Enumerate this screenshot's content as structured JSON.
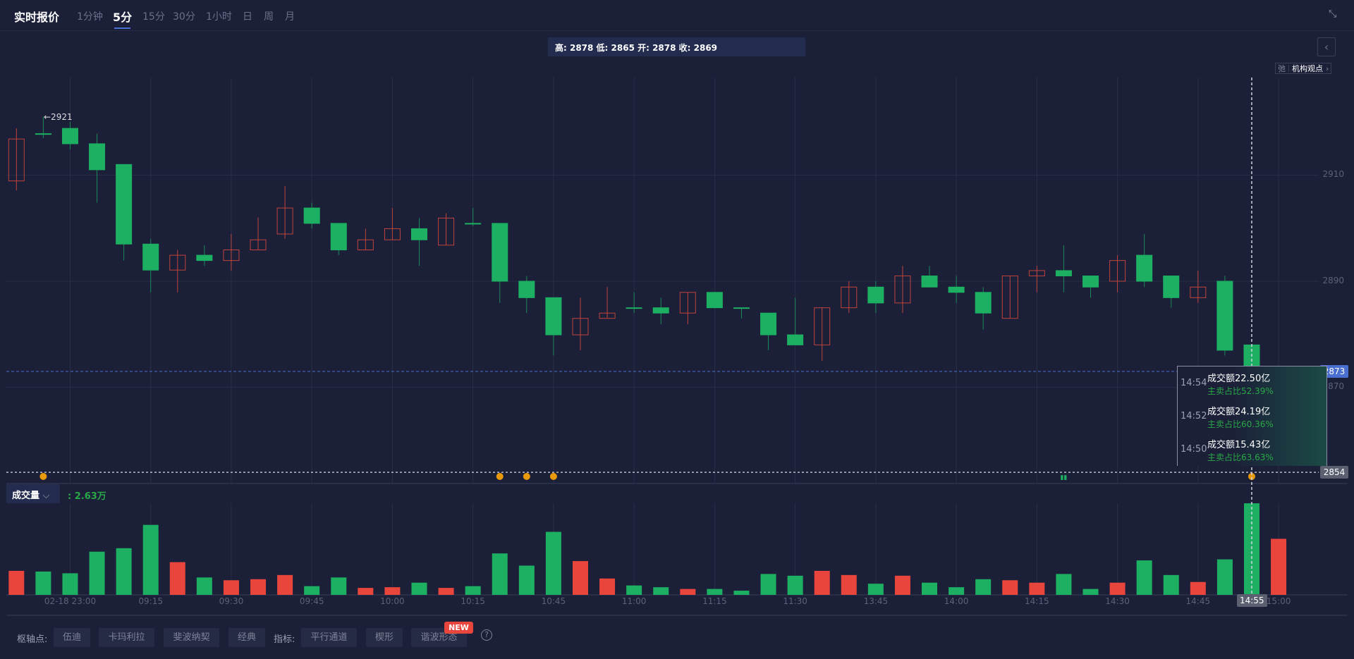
{
  "header": {
    "title": "实时报价",
    "tabs": [
      "1分钟",
      "5分",
      "15分",
      "30分",
      "1小时",
      "日",
      "周",
      "月"
    ],
    "active_tab": "5分"
  },
  "ohlc_text": "高: 2878 低: 2865 开: 2878 收: 2869",
  "opinion": {
    "icon": "弛",
    "label": "机构观点"
  },
  "colors": {
    "up": "#e8453c",
    "down": "#1db062",
    "background": "#1b1f38",
    "grid": "#2a2f48",
    "accent": "#4a6fd1"
  },
  "price_axis": {
    "ticks": [
      "2910",
      "2890",
      "2870"
    ],
    "current_price": "2873",
    "crosshair_price": "2854"
  },
  "tooltip": [
    {
      "time": "14:54",
      "amount": "成交额22.50亿",
      "ratio": "主卖占比52.39%"
    },
    {
      "time": "14:52",
      "amount": "成交额24.19亿",
      "ratio": "主卖占比60.36%"
    },
    {
      "time": "14:50",
      "amount": "成交额15.43亿",
      "ratio": "主卖占比63.63%"
    }
  ],
  "volume": {
    "selector": "成交量",
    "value": ": 2.63万"
  },
  "time_axis": {
    "labels": [
      {
        "i": 2,
        "t": "02-18 23:00"
      },
      {
        "i": 5,
        "t": "09:15"
      },
      {
        "i": 8,
        "t": "09:30"
      },
      {
        "i": 11,
        "t": "09:45"
      },
      {
        "i": 14,
        "t": "10:00"
      },
      {
        "i": 17,
        "t": "10:15"
      },
      {
        "i": 20,
        "t": "10:45"
      },
      {
        "i": 23,
        "t": "11:00"
      },
      {
        "i": 26,
        "t": "11:15"
      },
      {
        "i": 29,
        "t": "11:30"
      },
      {
        "i": 32,
        "t": "13:45"
      },
      {
        "i": 35,
        "t": "14:00"
      },
      {
        "i": 38,
        "t": "14:15"
      },
      {
        "i": 41,
        "t": "14:30"
      },
      {
        "i": 44,
        "t": "14:45"
      },
      {
        "i": 47,
        "t": "15:00"
      }
    ],
    "current": "14:55"
  },
  "max_label": "←2921",
  "bottom": {
    "pivot_label": "枢轴点:",
    "pivots": [
      "伍迪",
      "卡玛利拉",
      "斐波纳契",
      "经典"
    ],
    "indicator_label": "指标:",
    "indicators": [
      "平行通道",
      "楔形",
      "谐波形态"
    ],
    "new_badge": "NEW",
    "help": "?"
  },
  "chart_data": {
    "type": "candlestick",
    "unit_volume": "万",
    "y_ticks": [
      2910,
      2890,
      2870
    ],
    "candles": [
      [
        2908.9,
        2918.8,
        2907.1,
        2916.8
      ],
      [
        2917.8,
        2921,
        2917,
        2917.8
      ],
      [
        2918.8,
        2920,
        2914.9,
        2915.9
      ],
      [
        2915.9,
        2917.8,
        2904.8,
        2911
      ],
      [
        2912,
        2912,
        2893.9,
        2897
      ],
      [
        2897,
        2898,
        2887.9,
        2892.1
      ],
      [
        2892.1,
        2895.9,
        2887.9,
        2894.9
      ],
      [
        2894.9,
        2896.8,
        2892.9,
        2893.9
      ],
      [
        2893.9,
        2898.9,
        2892,
        2895.9
      ],
      [
        2895.9,
        2902,
        2895.9,
        2897.8
      ],
      [
        2898.9,
        2907.9,
        2898,
        2903.8
      ],
      [
        2903.8,
        2904.8,
        2899.9,
        2900.9
      ],
      [
        2900.9,
        2900.9,
        2894.9,
        2895.9
      ],
      [
        2895.9,
        2899.9,
        2895.9,
        2897.8
      ],
      [
        2897.8,
        2903.8,
        2897.8,
        2899.9
      ],
      [
        2899.9,
        2901.9,
        2892.9,
        2897.8
      ],
      [
        2896.8,
        2902.8,
        2896.8,
        2901.9
      ],
      [
        2900.9,
        2903.8,
        2900.4,
        2900.9
      ],
      [
        2900.9,
        2900.9,
        2885.9,
        2890
      ],
      [
        2890,
        2891,
        2884,
        2886.9
      ],
      [
        2886.9,
        2886.9,
        2876,
        2879.9
      ],
      [
        2879.9,
        2886.9,
        2877,
        2883
      ],
      [
        2883,
        2888.9,
        2883,
        2884
      ],
      [
        2885,
        2887.9,
        2884,
        2885
      ],
      [
        2885,
        2886.9,
        2881.9,
        2884
      ],
      [
        2884,
        2887.9,
        2881.9,
        2887.9
      ],
      [
        2887.9,
        2887.9,
        2885,
        2885
      ],
      [
        2885,
        2885,
        2883,
        2885
      ],
      [
        2884,
        2884,
        2877,
        2879.9
      ],
      [
        2879.9,
        2886.9,
        2878,
        2878
      ],
      [
        2878,
        2885,
        2875,
        2885
      ],
      [
        2885,
        2890,
        2884,
        2888.9
      ],
      [
        2888.9,
        2890,
        2884,
        2885.9
      ],
      [
        2885.9,
        2892.9,
        2884,
        2891
      ],
      [
        2891,
        2892.9,
        2888.9,
        2888.9
      ],
      [
        2888.9,
        2891,
        2885.9,
        2887.9
      ],
      [
        2887.9,
        2888.9,
        2880.9,
        2884
      ],
      [
        2883,
        2891,
        2883,
        2891
      ],
      [
        2891,
        2892.9,
        2887.9,
        2892
      ],
      [
        2892,
        2896.8,
        2887.9,
        2891
      ],
      [
        2891,
        2891,
        2886.9,
        2888.9
      ],
      [
        2890,
        2894.9,
        2887.9,
        2893.9
      ],
      [
        2894.9,
        2898.9,
        2888.9,
        2890
      ],
      [
        2891,
        2891,
        2885,
        2886.9
      ],
      [
        2886.9,
        2892,
        2885.9,
        2888.9
      ],
      [
        2890,
        2891,
        2876,
        2877
      ],
      [
        2878,
        2878,
        2865,
        2869
      ],
      null
    ],
    "volumes": [
      0.69,
      0.67,
      0.62,
      1.24,
      1.34,
      2.01,
      0.94,
      0.5,
      0.42,
      0.45,
      0.57,
      0.25,
      0.5,
      0.2,
      0.22,
      0.35,
      0.2,
      0.25,
      1.19,
      0.84,
      1.81,
      0.97,
      0.47,
      0.27,
      0.22,
      0.17,
      0.17,
      0.12,
      0.6,
      0.55,
      0.69,
      0.57,
      0.32,
      0.55,
      0.35,
      0.22,
      0.45,
      0.42,
      0.35,
      0.6,
      0.17,
      0.35,
      0.99,
      0.57,
      0.37,
      1.02,
      2.63,
      1.61
    ],
    "volume_up": [
      1,
      0,
      0,
      0,
      0,
      0,
      1,
      0,
      1,
      1,
      1,
      0,
      0,
      1,
      1,
      0,
      1,
      0,
      0,
      0,
      0,
      1,
      1,
      0,
      0,
      1,
      0,
      0,
      0,
      0,
      1,
      1,
      0,
      1,
      0,
      0,
      0,
      1,
      1,
      0,
      0,
      1,
      0,
      0,
      1,
      0,
      0,
      1
    ],
    "markers": [
      1,
      18,
      19,
      20,
      46
    ],
    "hovered_index": 46
  }
}
